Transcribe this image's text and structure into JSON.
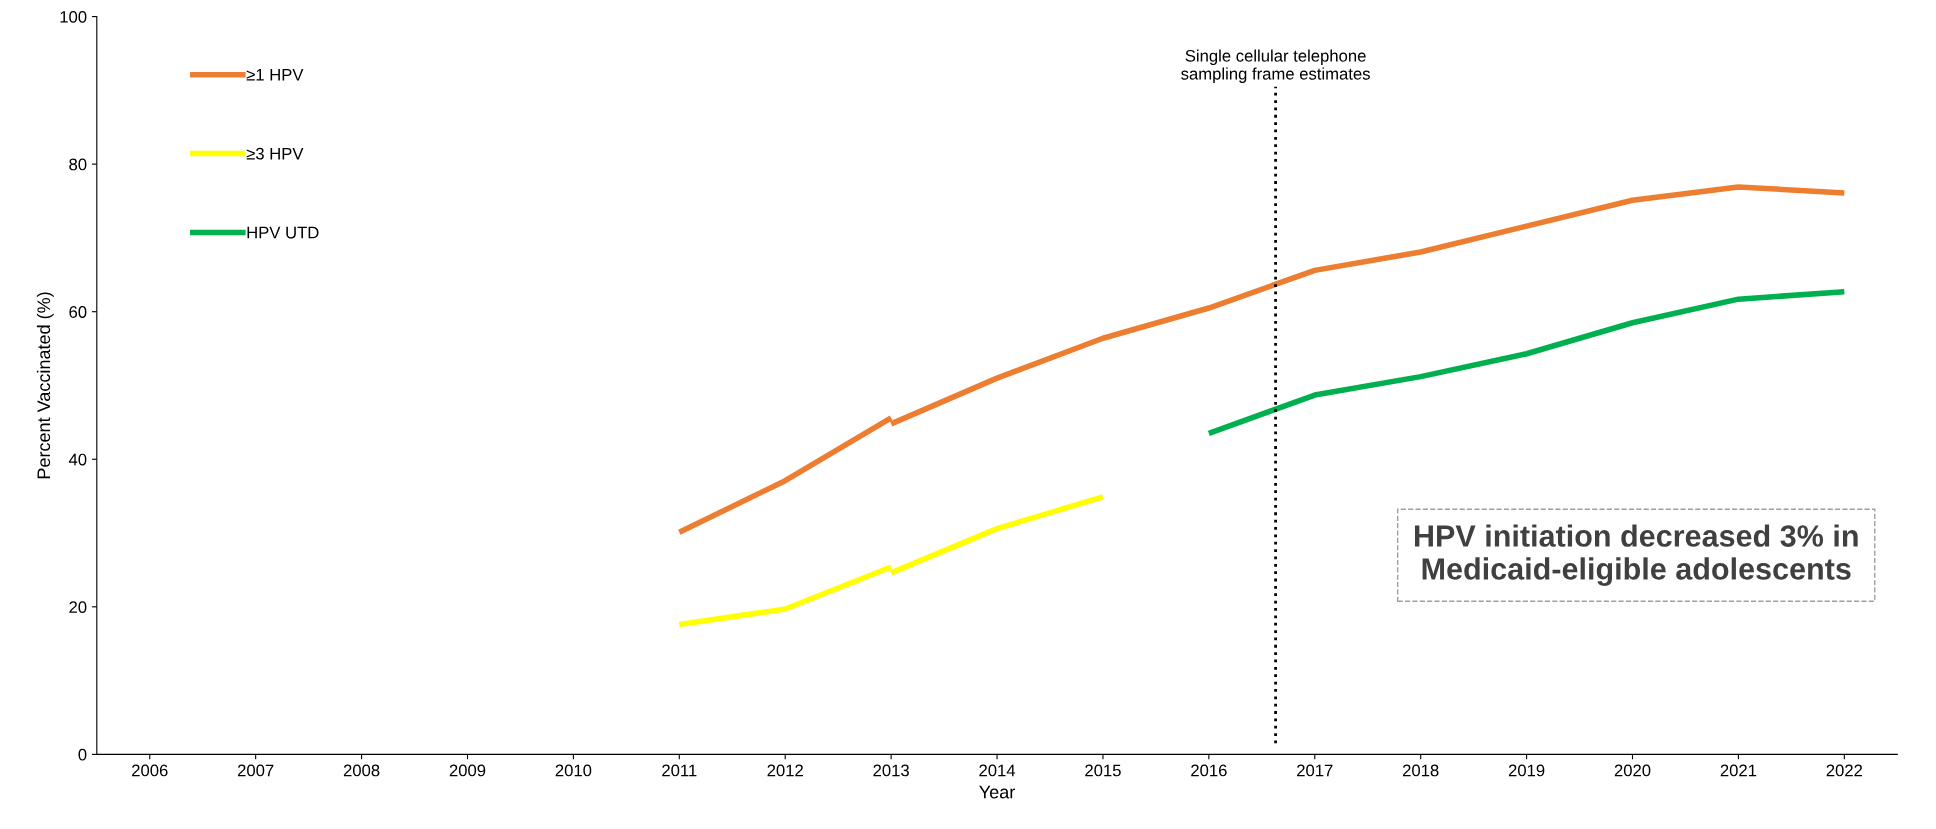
{
  "chart_data": {
    "type": "line",
    "xlabel": "Year",
    "ylabel": "Percent Vaccinated (%)",
    "xlim": [
      2005.5,
      2022.5
    ],
    "xticks": [
      2006,
      2007,
      2008,
      2009,
      2010,
      2011,
      2012,
      2013,
      2014,
      2015,
      2016,
      2017,
      2018,
      2019,
      2020,
      2021,
      2022
    ],
    "ylim": [
      0,
      100
    ],
    "yticks": [
      0,
      20,
      40,
      60,
      80,
      100
    ],
    "grid": false,
    "legend": "top left",
    "marker": "none",
    "line_style": "solid",
    "series": [
      {
        "name": "≥1 HPV",
        "color": "#ed7d31",
        "x": [
          2011,
          2012,
          2013
        ],
        "values": [
          30.1,
          37.1,
          45.6
        ]
      },
      {
        "color": "#ed7d31",
        "x": [
          2013,
          2014,
          2015,
          2016,
          2017,
          2018,
          2019,
          2020,
          2021,
          2022
        ],
        "values": [
          44.8,
          51.0,
          56.4,
          60.5,
          65.6,
          68.1,
          71.6,
          75.1,
          76.9,
          76.1
        ]
      },
      {
        "name": "≥3 HPV",
        "color": "#ffff00",
        "x": [
          2011,
          2012,
          2013
        ],
        "values": [
          17.6,
          19.7,
          25.4
        ]
      },
      {
        "color": "#ffff00",
        "x": [
          2013,
          2014,
          2015
        ],
        "values": [
          24.6,
          30.6,
          34.9
        ]
      },
      {
        "name": "HPV UTD",
        "color": "#00b050",
        "x": [
          2016,
          2017,
          2018,
          2019,
          2020,
          2021,
          2022
        ],
        "values": [
          43.5,
          48.7,
          51.2,
          54.3,
          58.5,
          61.7,
          62.7
        ]
      }
    ],
    "ref_lines": [
      {
        "axis": "x",
        "value": 2016.63,
        "label": "Single cellular telephone\nsampling frame estimates",
        "color": "#000000",
        "line_style": "dotted"
      }
    ],
    "annotations": [
      "HPV initiation decreased 3% in\nMedicaid-eligible adolescents"
    ]
  }
}
